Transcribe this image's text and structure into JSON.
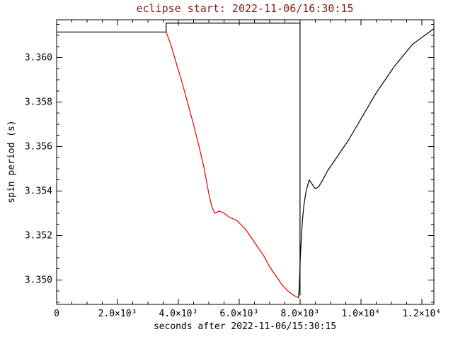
{
  "chart_data": {
    "type": "line",
    "title": "eclipse start: 2022-11-06/16:30:15",
    "xlabel": "seconds after 2022-11-06/15:30:15",
    "ylabel": "spin period (s)",
    "xlim": [
      0,
      12400
    ],
    "ylim": [
      3.3489,
      3.3617
    ],
    "grid": false,
    "legend": "none",
    "x_major_tick_interval": 2000,
    "x_minor_tick_interval": 500,
    "y_major_tick_interval": 0.002,
    "y_minor_tick_interval": 0.0005,
    "xticks": [
      {
        "value": 0,
        "label": "0"
      },
      {
        "value": 2000,
        "label": "2.0×10³"
      },
      {
        "value": 4000,
        "label": "4.0×10³"
      },
      {
        "value": 6000,
        "label": "6.0×10³"
      },
      {
        "value": 8000,
        "label": "8.0×10³"
      },
      {
        "value": 10000,
        "label": "1.0×10⁴"
      },
      {
        "value": 12000,
        "label": "1.2×10⁴"
      }
    ],
    "yticks": [
      {
        "value": 3.35,
        "label": "3.350"
      },
      {
        "value": 3.352,
        "label": "3.352"
      },
      {
        "value": 3.354,
        "label": "3.354"
      },
      {
        "value": 3.356,
        "label": "3.356"
      },
      {
        "value": 3.358,
        "label": "3.358"
      },
      {
        "value": 3.36,
        "label": "3.360"
      }
    ],
    "series": [
      {
        "name": "spin period pre-eclipse",
        "color": "#000000",
        "points": [
          [
            0,
            3.36115
          ],
          [
            3600,
            3.36115
          ]
        ]
      },
      {
        "name": "spin period in eclipse",
        "color": "#e60000",
        "points": [
          [
            3600,
            3.36115
          ],
          [
            3750,
            3.3606
          ],
          [
            3900,
            3.3599
          ],
          [
            4100,
            3.359
          ],
          [
            4300,
            3.358
          ],
          [
            4500,
            3.357
          ],
          [
            4700,
            3.3559
          ],
          [
            4850,
            3.355
          ],
          [
            5000,
            3.3539
          ],
          [
            5100,
            3.3533
          ],
          [
            5200,
            3.353
          ],
          [
            5350,
            3.3531
          ],
          [
            5500,
            3.353
          ],
          [
            5700,
            3.3528
          ],
          [
            5900,
            3.3527
          ],
          [
            6050,
            3.3525
          ],
          [
            6200,
            3.3523
          ],
          [
            6400,
            3.3519
          ],
          [
            6600,
            3.3515
          ],
          [
            6800,
            3.3511
          ],
          [
            7000,
            3.3506
          ],
          [
            7200,
            3.3502
          ],
          [
            7400,
            3.3498
          ],
          [
            7600,
            3.3495
          ],
          [
            7800,
            3.3493
          ],
          [
            7950,
            3.3492
          ]
        ]
      },
      {
        "name": "spin period post-eclipse recovery",
        "color": "#000000",
        "points": [
          [
            7950,
            3.3492
          ],
          [
            7970,
            3.3496
          ],
          [
            7990,
            3.3502
          ],
          [
            8010,
            3.351
          ],
          [
            8040,
            3.3518
          ],
          [
            8080,
            3.3527
          ],
          [
            8130,
            3.3534
          ],
          [
            8200,
            3.354
          ],
          [
            8300,
            3.3545
          ],
          [
            8400,
            3.3543
          ],
          [
            8500,
            3.3541
          ],
          [
            8620,
            3.3542
          ],
          [
            8750,
            3.3545
          ],
          [
            8900,
            3.3549
          ],
          [
            9100,
            3.3553
          ],
          [
            9300,
            3.3557
          ],
          [
            9600,
            3.3563
          ],
          [
            9900,
            3.357
          ],
          [
            10200,
            3.3577
          ],
          [
            10500,
            3.3584
          ],
          [
            10800,
            3.359
          ],
          [
            11100,
            3.3596
          ],
          [
            11400,
            3.3601
          ],
          [
            11700,
            3.3606
          ],
          [
            12000,
            3.3609
          ],
          [
            12200,
            3.3611
          ],
          [
            12400,
            3.3613
          ]
        ]
      }
    ],
    "annotations": {
      "eclipse_window_box": {
        "x_start": 3600,
        "x_end": 8000,
        "y_top": 3.36155,
        "y_left_bottom": 3.36115,
        "y_right_bottom": 3.3493,
        "color": "#000000"
      }
    },
    "colors": {
      "title": "#8b1a1a",
      "axis": "#000000",
      "background": "#ffffff",
      "eclipse_curve": "#e60000"
    }
  }
}
